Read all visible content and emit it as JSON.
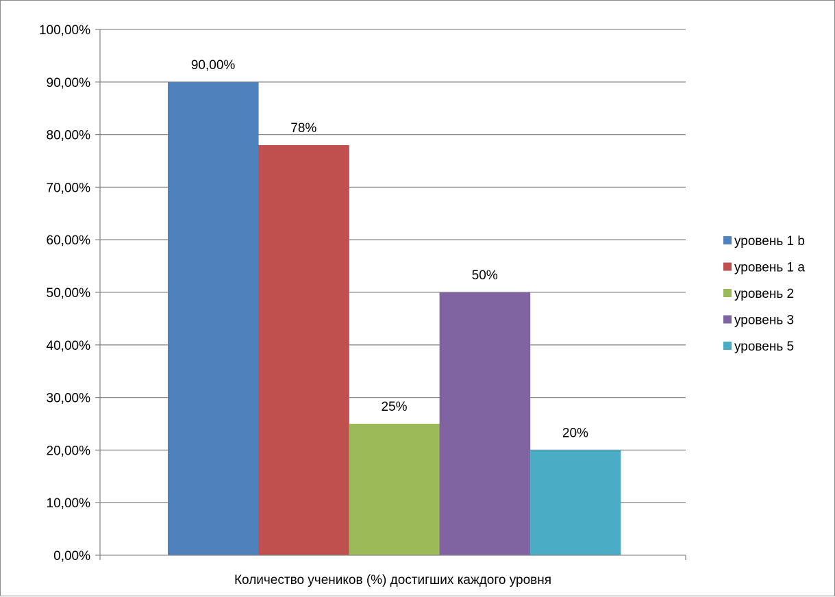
{
  "chart_data": {
    "type": "bar",
    "categories": [
      "Количество учеников (%) достигших каждого уровня"
    ],
    "series": [
      {
        "name": "уровень 1 b",
        "values": [
          90
        ],
        "data_label": "90,00%",
        "color": "#4F81BD"
      },
      {
        "name": "уровень 1 а",
        "values": [
          78
        ],
        "data_label": "78%",
        "color": "#C0504D"
      },
      {
        "name": "уровень 2",
        "values": [
          25
        ],
        "data_label": "25%",
        "color": "#9BBB59"
      },
      {
        "name": "уровень 3",
        "values": [
          50
        ],
        "data_label": "50%",
        "color": "#8064A2"
      },
      {
        "name": "уровень 5",
        "values": [
          20
        ],
        "data_label": "20%",
        "color": "#4BACC6"
      }
    ],
    "ylim": [
      0,
      100
    ],
    "yticks": [
      0,
      10,
      20,
      30,
      40,
      50,
      60,
      70,
      80,
      90,
      100
    ],
    "ytick_labels": [
      "0,00%",
      "10,00%",
      "20,00%",
      "30,00%",
      "40,00%",
      "50,00%",
      "60,00%",
      "70,00%",
      "80,00%",
      "90,00%",
      "100,00%"
    ],
    "grid": true,
    "legend": "right",
    "colors": {
      "gridline": "#8a8a8a",
      "axis": "#8a8a8a"
    }
  }
}
